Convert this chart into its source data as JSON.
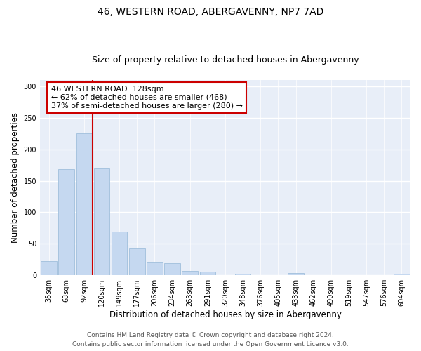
{
  "title": "46, WESTERN ROAD, ABERGAVENNY, NP7 7AD",
  "subtitle": "Size of property relative to detached houses in Abergavenny",
  "xlabel": "Distribution of detached houses by size in Abergavenny",
  "ylabel": "Number of detached properties",
  "categories": [
    "35sqm",
    "63sqm",
    "92sqm",
    "120sqm",
    "149sqm",
    "177sqm",
    "206sqm",
    "234sqm",
    "263sqm",
    "291sqm",
    "320sqm",
    "348sqm",
    "376sqm",
    "405sqm",
    "433sqm",
    "462sqm",
    "490sqm",
    "519sqm",
    "547sqm",
    "576sqm",
    "604sqm"
  ],
  "values": [
    22,
    168,
    225,
    170,
    69,
    44,
    21,
    19,
    7,
    6,
    0,
    2,
    0,
    0,
    4,
    0,
    0,
    0,
    0,
    0,
    2
  ],
  "bar_color": "#c5d8f0",
  "bar_edge_color": "#a0bfdc",
  "background_color": "#e8eef8",
  "grid_color": "#ffffff",
  "annotation_text": "46 WESTERN ROAD: 128sqm\n← 62% of detached houses are smaller (468)\n37% of semi-detached houses are larger (280) →",
  "annotation_box_color": "#ffffff",
  "annotation_box_edge_color": "#cc0000",
  "vline_color": "#cc0000",
  "vline_x_index": 3,
  "ylim": [
    0,
    310
  ],
  "yticks": [
    0,
    50,
    100,
    150,
    200,
    250,
    300
  ],
  "footer": "Contains HM Land Registry data © Crown copyright and database right 2024.\nContains public sector information licensed under the Open Government Licence v3.0.",
  "title_fontsize": 10,
  "subtitle_fontsize": 9,
  "xlabel_fontsize": 8.5,
  "ylabel_fontsize": 8.5,
  "tick_fontsize": 7,
  "annotation_fontsize": 8,
  "footer_fontsize": 6.5,
  "fig_facecolor": "#ffffff"
}
